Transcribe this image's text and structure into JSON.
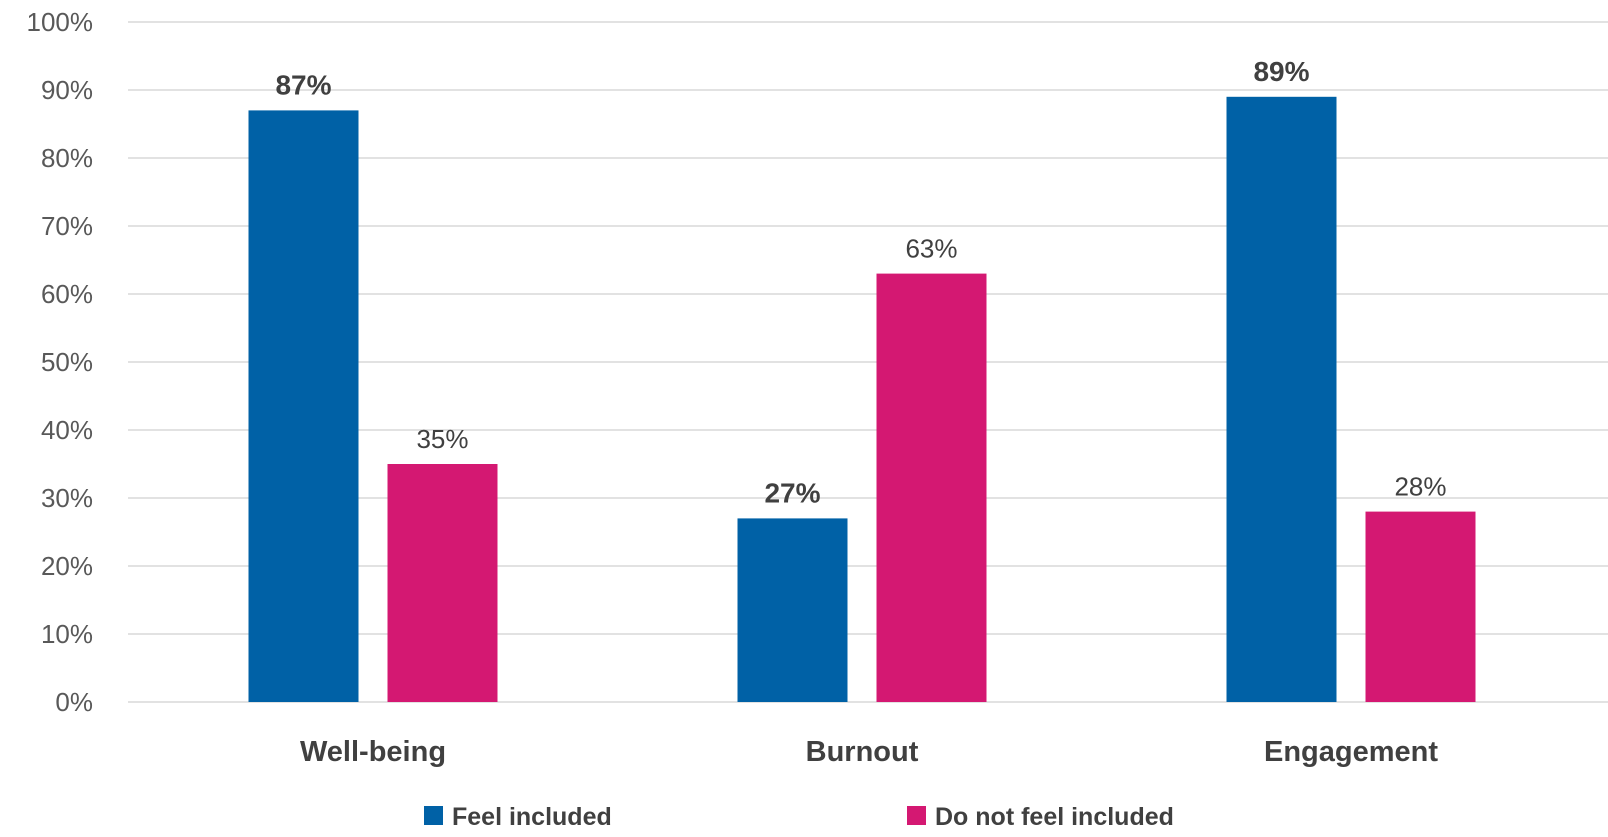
{
  "chart_data": {
    "type": "bar",
    "categories": [
      "Well-being",
      "Burnout",
      "Engagement"
    ],
    "series": [
      {
        "name": "Feel included",
        "values": [
          87,
          27,
          89
        ],
        "labels": [
          "87%",
          "27%",
          "89%"
        ],
        "color": "#0061A6",
        "label_bold": true
      },
      {
        "name": "Do not feel included",
        "values": [
          35,
          63,
          28
        ],
        "labels": [
          "35%",
          "63%",
          "28%"
        ],
        "color": "#D41872",
        "label_bold": false
      }
    ],
    "title": "",
    "xlabel": "",
    "ylabel": "",
    "ylim": [
      0,
      100
    ],
    "y_ticks": [
      "0%",
      "10%",
      "20%",
      "30%",
      "40%",
      "50%",
      "60%",
      "70%",
      "80%",
      "90%",
      "100%"
    ],
    "grid": true,
    "legend_position": "bottom",
    "gridline_color": "#D9D9D9"
  }
}
